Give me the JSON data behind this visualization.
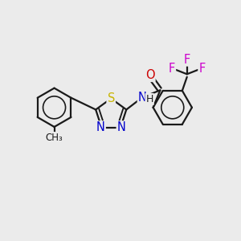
{
  "bg_color": "#ebebeb",
  "bond_color": "#1a1a1a",
  "bond_width": 1.6,
  "atom_colors": {
    "S": "#c8b400",
    "N": "#0000cc",
    "O": "#cc0000",
    "F": "#cc00cc",
    "C": "#1a1a1a",
    "H": "#1a1a1a"
  },
  "font_size_atom": 10.5,
  "font_size_small": 9.0
}
